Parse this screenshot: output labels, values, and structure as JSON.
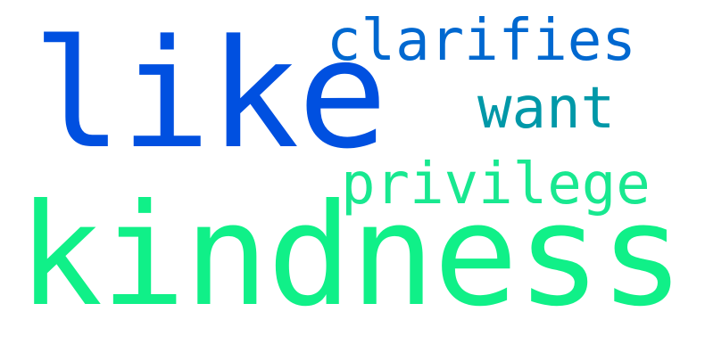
{
  "words": [
    {
      "text": "like",
      "color": "#0050e0"
    },
    {
      "text": "clarifies",
      "color": "#0068d0"
    },
    {
      "text": "want",
      "color": "#0098a8"
    },
    {
      "text": "privilege",
      "color": "#18e890"
    },
    {
      "text": "kindness",
      "color": "#10f088"
    }
  ]
}
